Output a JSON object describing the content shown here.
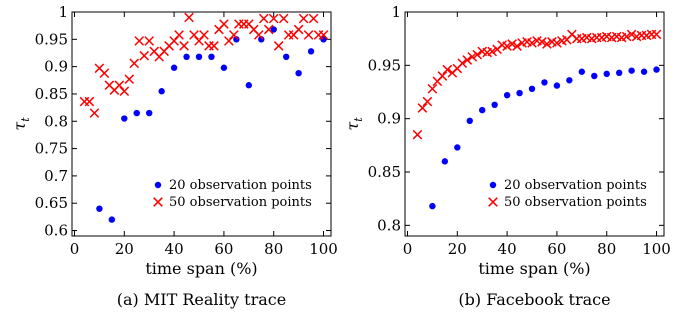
{
  "chart_data": [
    {
      "type": "scatter",
      "caption": "(a) MIT Reality trace",
      "xlabel": "time span (%)",
      "ylabel": "τ",
      "ylabel_sub": "t",
      "xlim": [
        -1,
        103
      ],
      "ylim": [
        0.59,
        1.0
      ],
      "xticks": [
        0,
        20,
        40,
        60,
        80,
        100
      ],
      "yticks": [
        0.6,
        0.65,
        0.7,
        0.75,
        0.8,
        0.85,
        0.9,
        0.95,
        1.0
      ],
      "ytick_labels": [
        "0.6",
        "0.65",
        "0.7",
        "0.75",
        "0.8",
        "0.85",
        "0.9",
        "0.95",
        "1"
      ],
      "legend_position": "bottom-right",
      "series": [
        {
          "name": "20 observation points",
          "marker": "dot",
          "color": "#0000ff",
          "points": [
            [
              10,
              0.64
            ],
            [
              15,
              0.62
            ],
            [
              20,
              0.805
            ],
            [
              25,
              0.815
            ],
            [
              30,
              0.815
            ],
            [
              35,
              0.855
            ],
            [
              40,
              0.898
            ],
            [
              45,
              0.918
            ],
            [
              50,
              0.918
            ],
            [
              55,
              0.918
            ],
            [
              60,
              0.898
            ],
            [
              65,
              0.95
            ],
            [
              70,
              0.866
            ],
            [
              75,
              0.95
            ],
            [
              80,
              0.968
            ],
            [
              85,
              0.918
            ],
            [
              90,
              0.888
            ],
            [
              95,
              0.928
            ],
            [
              100,
              0.95
            ]
          ]
        },
        {
          "name": "50 observation points",
          "marker": "x",
          "color": "#ff0000",
          "points": [
            [
              4,
              0.836
            ],
            [
              6,
              0.836
            ],
            [
              8,
              0.815
            ],
            [
              10,
              0.897
            ],
            [
              12,
              0.888
            ],
            [
              14,
              0.866
            ],
            [
              16,
              0.857
            ],
            [
              18,
              0.866
            ],
            [
              20,
              0.855
            ],
            [
              22,
              0.877
            ],
            [
              24,
              0.906
            ],
            [
              26,
              0.947
            ],
            [
              28,
              0.92
            ],
            [
              30,
              0.947
            ],
            [
              32,
              0.928
            ],
            [
              34,
              0.918
            ],
            [
              36,
              0.928
            ],
            [
              38,
              0.938
            ],
            [
              40,
              0.947
            ],
            [
              42,
              0.958
            ],
            [
              44,
              0.938
            ],
            [
              46,
              0.99
            ],
            [
              48,
              0.958
            ],
            [
              50,
              0.947
            ],
            [
              52,
              0.958
            ],
            [
              54,
              0.938
            ],
            [
              56,
              0.938
            ],
            [
              58,
              0.968
            ],
            [
              60,
              0.978
            ],
            [
              62,
              0.947
            ],
            [
              64,
              0.958
            ],
            [
              66,
              0.978
            ],
            [
              68,
              0.978
            ],
            [
              70,
              0.978
            ],
            [
              72,
              0.968
            ],
            [
              74,
              0.958
            ],
            [
              76,
              0.988
            ],
            [
              78,
              0.968
            ],
            [
              80,
              0.988
            ],
            [
              82,
              0.938
            ],
            [
              84,
              0.988
            ],
            [
              86,
              0.958
            ],
            [
              88,
              0.958
            ],
            [
              90,
              0.968
            ],
            [
              92,
              0.988
            ],
            [
              94,
              0.958
            ],
            [
              96,
              0.988
            ],
            [
              98,
              0.958
            ],
            [
              100,
              0.958
            ]
          ]
        }
      ]
    },
    {
      "type": "scatter",
      "caption": "(b) Facebook trace",
      "xlabel": "time span (%)",
      "ylabel": "τ",
      "ylabel_sub": "t",
      "xlim": [
        -1,
        103
      ],
      "ylim": [
        0.79,
        1.0
      ],
      "xticks": [
        0,
        20,
        40,
        60,
        80,
        100
      ],
      "yticks": [
        0.8,
        0.85,
        0.9,
        0.95,
        1.0
      ],
      "ytick_labels": [
        "0.8",
        "0.85",
        "0.9",
        "0.95",
        "1"
      ],
      "legend_position": "bottom-right",
      "series": [
        {
          "name": "20 observation points",
          "marker": "dot",
          "color": "#0000ff",
          "points": [
            [
              10,
              0.818
            ],
            [
              15,
              0.86
            ],
            [
              20,
              0.873
            ],
            [
              25,
              0.898
            ],
            [
              30,
              0.908
            ],
            [
              35,
              0.913
            ],
            [
              40,
              0.922
            ],
            [
              45,
              0.924
            ],
            [
              50,
              0.928
            ],
            [
              55,
              0.934
            ],
            [
              60,
              0.931
            ],
            [
              65,
              0.936
            ],
            [
              70,
              0.944
            ],
            [
              75,
              0.94
            ],
            [
              80,
              0.942
            ],
            [
              85,
              0.943
            ],
            [
              90,
              0.945
            ],
            [
              95,
              0.944
            ],
            [
              100,
              0.946
            ]
          ]
        },
        {
          "name": "50 observation points",
          "marker": "x",
          "color": "#ff0000",
          "points": [
            [
              4,
              0.885
            ],
            [
              6,
              0.91
            ],
            [
              8,
              0.916
            ],
            [
              10,
              0.928
            ],
            [
              12,
              0.935
            ],
            [
              14,
              0.94
            ],
            [
              16,
              0.946
            ],
            [
              18,
              0.943
            ],
            [
              20,
              0.947
            ],
            [
              22,
              0.952
            ],
            [
              24,
              0.955
            ],
            [
              26,
              0.958
            ],
            [
              28,
              0.96
            ],
            [
              30,
              0.963
            ],
            [
              32,
              0.962
            ],
            [
              34,
              0.963
            ],
            [
              36,
              0.965
            ],
            [
              38,
              0.969
            ],
            [
              40,
              0.968
            ],
            [
              42,
              0.97
            ],
            [
              44,
              0.968
            ],
            [
              46,
              0.971
            ],
            [
              48,
              0.972
            ],
            [
              50,
              0.971
            ],
            [
              52,
              0.973
            ],
            [
              54,
              0.972
            ],
            [
              56,
              0.97
            ],
            [
              58,
              0.972
            ],
            [
              60,
              0.971
            ],
            [
              62,
              0.973
            ],
            [
              64,
              0.974
            ],
            [
              66,
              0.979
            ],
            [
              68,
              0.975
            ],
            [
              70,
              0.975
            ],
            [
              72,
              0.976
            ],
            [
              74,
              0.975
            ],
            [
              76,
              0.976
            ],
            [
              78,
              0.976
            ],
            [
              80,
              0.977
            ],
            [
              82,
              0.976
            ],
            [
              84,
              0.977
            ],
            [
              86,
              0.976
            ],
            [
              88,
              0.977
            ],
            [
              90,
              0.979
            ],
            [
              92,
              0.977
            ],
            [
              94,
              0.978
            ],
            [
              96,
              0.978
            ],
            [
              98,
              0.979
            ],
            [
              100,
              0.979
            ]
          ]
        }
      ]
    }
  ]
}
